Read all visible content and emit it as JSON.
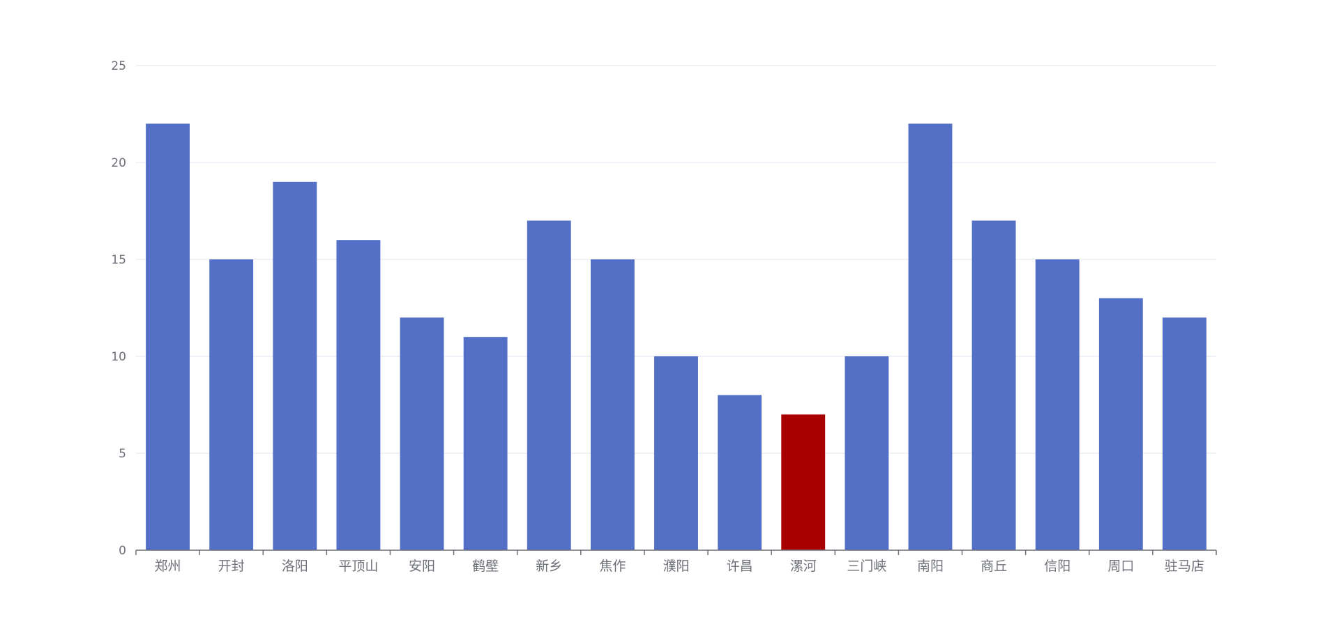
{
  "chart_data": {
    "type": "bar",
    "title": "",
    "xlabel": "",
    "ylabel": "",
    "categories": [
      "郑州",
      "开封",
      "洛阳",
      "平顶山",
      "安阳",
      "鹤壁",
      "新乡",
      "焦作",
      "濮阳",
      "许昌",
      "漯河",
      "三门峡",
      "南阳",
      "商丘",
      "信阳",
      "周口",
      "驻马店"
    ],
    "values": [
      22,
      15,
      19,
      16,
      12,
      11,
      17,
      15,
      10,
      8,
      7,
      10,
      22,
      17,
      15,
      13,
      12
    ],
    "highlight_category": "漯河",
    "ylim": [
      0,
      25
    ],
    "yticks": [
      0,
      5,
      10,
      15,
      20,
      25
    ],
    "grid": true,
    "legend": "none",
    "colors": {
      "bar": "#5470c6",
      "highlight": "#a80000",
      "grid": "#e0e6f1",
      "axis": "#6e7079",
      "label": "#6e7079"
    }
  }
}
